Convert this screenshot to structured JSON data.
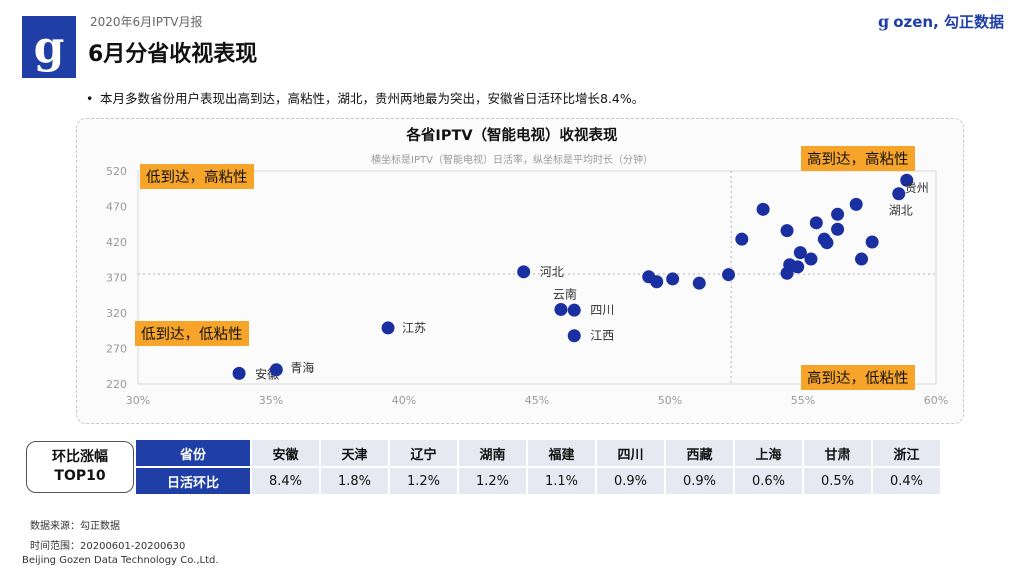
{
  "header": {
    "report_title": "2020年6月IPTV月报",
    "page_title": "6月分省收视表现",
    "logo_glyph": "g",
    "brand_mark": "g",
    "brand": "ozen, 勾正数据"
  },
  "bullet": {
    "symbol": "•",
    "text": "本月多数省份用户表现出高到达，高粘性，湖北，贵州两地最为突出，安徽省日活环比增长8.4%。"
  },
  "chart_data": {
    "type": "scatter",
    "title": "各省IPTV（智能电视）收视表现",
    "subtitle": "横坐标是IPTV（智能电视）日活率，纵坐标是平均时长（分钟）",
    "xlim": [
      30,
      60
    ],
    "ylim": [
      220,
      520
    ],
    "x_ticks": [
      "30%",
      "35%",
      "40%",
      "45%",
      "50%",
      "55%",
      "60%"
    ],
    "x_tick_values": [
      30,
      35,
      40,
      45,
      50,
      55,
      60
    ],
    "y_ticks": [
      "520",
      "470",
      "420",
      "370",
      "320",
      "270",
      "220"
    ],
    "y_tick_values": [
      520,
      470,
      420,
      370,
      320,
      270,
      220
    ],
    "reference_lines": {
      "x": 52.3,
      "y": 375
    },
    "point_color": "#1a2fa0",
    "quadrants": {
      "top_left": "低到达，高粘性",
      "top_right": "高到达，高粘性",
      "bottom_left": "低到达，低粘性",
      "bottom_right": "高到达，低粘性"
    },
    "points": [
      {
        "x": 33.8,
        "y": 235,
        "label": "安徽"
      },
      {
        "x": 35.2,
        "y": 240,
        "label": "青海"
      },
      {
        "x": 39.4,
        "y": 299,
        "label": "江苏"
      },
      {
        "x": 44.5,
        "y": 378,
        "label": "河北"
      },
      {
        "x": 45.9,
        "y": 325,
        "label": "云南"
      },
      {
        "x": 46.4,
        "y": 324,
        "label": "四川"
      },
      {
        "x": 46.4,
        "y": 288,
        "label": "江西"
      },
      {
        "x": 49.2,
        "y": 371,
        "label": ""
      },
      {
        "x": 49.5,
        "y": 364,
        "label": ""
      },
      {
        "x": 50.1,
        "y": 368,
        "label": ""
      },
      {
        "x": 51.1,
        "y": 362,
        "label": ""
      },
      {
        "x": 52.2,
        "y": 374,
        "label": ""
      },
      {
        "x": 52.7,
        "y": 424,
        "label": ""
      },
      {
        "x": 53.5,
        "y": 466,
        "label": ""
      },
      {
        "x": 54.4,
        "y": 436,
        "label": ""
      },
      {
        "x": 54.4,
        "y": 376,
        "label": ""
      },
      {
        "x": 54.5,
        "y": 388,
        "label": ""
      },
      {
        "x": 54.8,
        "y": 385,
        "label": ""
      },
      {
        "x": 54.9,
        "y": 405,
        "label": ""
      },
      {
        "x": 55.3,
        "y": 396,
        "label": ""
      },
      {
        "x": 55.5,
        "y": 447,
        "label": ""
      },
      {
        "x": 55.8,
        "y": 424,
        "label": ""
      },
      {
        "x": 55.9,
        "y": 419,
        "label": ""
      },
      {
        "x": 56.3,
        "y": 459,
        "label": ""
      },
      {
        "x": 56.3,
        "y": 438,
        "label": ""
      },
      {
        "x": 57.0,
        "y": 473,
        "label": ""
      },
      {
        "x": 57.2,
        "y": 396,
        "label": ""
      },
      {
        "x": 57.6,
        "y": 420,
        "label": ""
      },
      {
        "x": 58.6,
        "y": 488,
        "label": "湖北"
      },
      {
        "x": 58.9,
        "y": 507,
        "label": "贵州"
      }
    ]
  },
  "ranking": {
    "box_line1": "环比涨幅",
    "box_line2": "TOP10",
    "row1_header": "省份",
    "row2_header": "日活环比",
    "provinces": [
      "安徽",
      "天津",
      "辽宁",
      "湖南",
      "福建",
      "四川",
      "西藏",
      "上海",
      "甘肃",
      "浙江"
    ],
    "values": [
      "8.4%",
      "1.8%",
      "1.2%",
      "1.2%",
      "1.1%",
      "0.9%",
      "0.9%",
      "0.6%",
      "0.5%",
      "0.4%"
    ]
  },
  "footer": {
    "source": "数据来源：勾正数据",
    "period": "时间范围：20200601-20200630",
    "company": "Beijing Gozen Data Technology Co.,Ltd."
  }
}
